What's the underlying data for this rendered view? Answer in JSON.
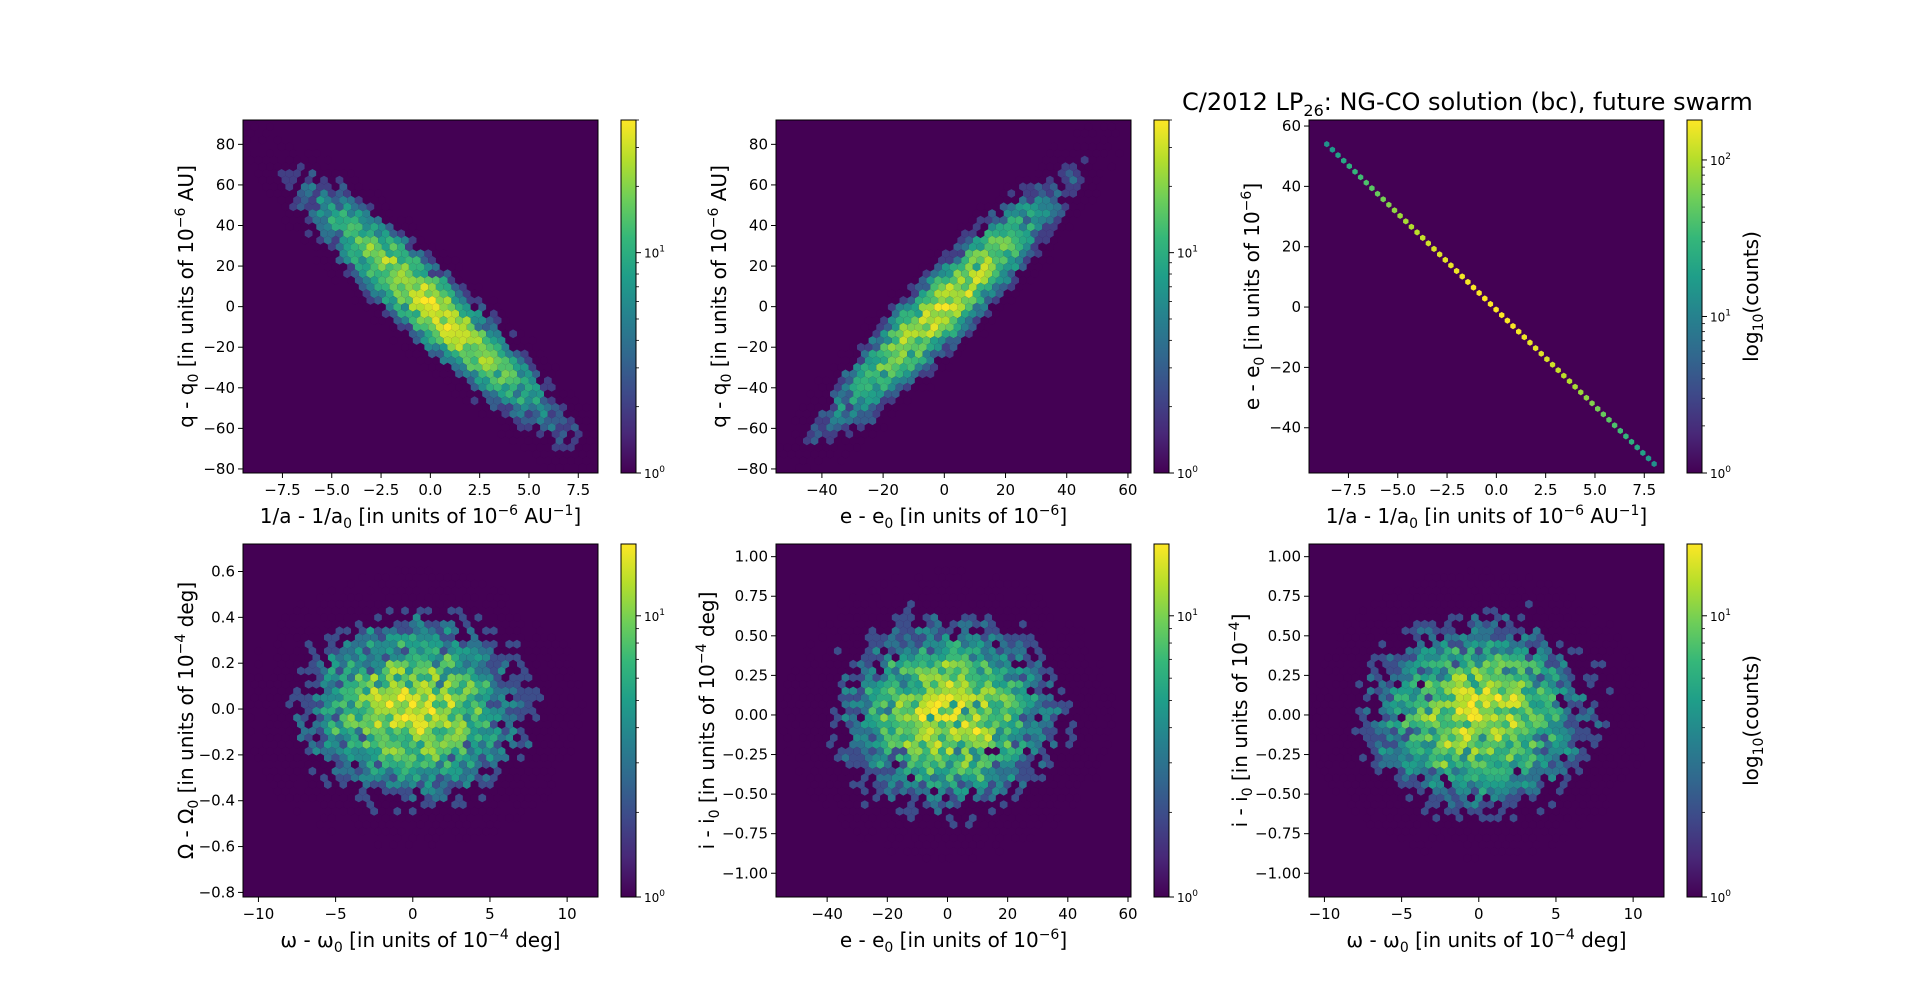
{
  "figure": {
    "title_prefix": "C/2012 LP",
    "title_sub": "26",
    "title_suffix": ": NG-CO solution (bc), future swarm"
  },
  "colors": {
    "background": "#440154",
    "viridis": [
      "#440154",
      "#482878",
      "#3e4989",
      "#31688e",
      "#26828e",
      "#1f9e89",
      "#35b779",
      "#6ece58",
      "#b5de2b",
      "#fde725"
    ]
  },
  "chart_data": [
    {
      "type": "heatmap",
      "subtype": "hexbin",
      "xlabel": {
        "pre": "1/a - 1/a",
        "sub": "0",
        "mid": " [in units of 10",
        "sup": "−6",
        "post": " AU",
        "sup2": "−1",
        "end": "]"
      },
      "ylabel": {
        "pre": "q - q",
        "sub": "0",
        "mid": " [in units of 10",
        "sup": "−6",
        "post": " AU]"
      },
      "xlim": [
        -9.5,
        8.5
      ],
      "ylim": [
        -82,
        92
      ],
      "xticks": [
        -7.5,
        -5.0,
        -2.5,
        0.0,
        2.5,
        5.0,
        7.5
      ],
      "xtick_labels": [
        "−7.5",
        "−5.0",
        "−2.5",
        "0.0",
        "2.5",
        "5.0",
        "7.5"
      ],
      "yticks": [
        -80,
        -60,
        -40,
        -20,
        0,
        20,
        40,
        60,
        80
      ],
      "ytick_labels": [
        "−80",
        "−60",
        "−40",
        "−20",
        "0",
        "20",
        "40",
        "60",
        "80"
      ],
      "distribution": {
        "center": [
          0,
          0
        ],
        "sigma": [
          3.0,
          28
        ],
        "correlation": -0.93
      },
      "colorbar": {
        "scale": "log",
        "range": [
          1,
          40
        ],
        "ticks": [
          1,
          10
        ],
        "tick_labels": [
          {
            "base": "10",
            "exp": "0"
          },
          {
            "base": "10",
            "exp": "1"
          }
        ],
        "label": ""
      }
    },
    {
      "type": "heatmap",
      "subtype": "hexbin",
      "xlabel": {
        "pre": "e - e",
        "sub": "0",
        "mid": " [in units of 10",
        "sup": "−6",
        "post": "]"
      },
      "ylabel": {
        "pre": "q - q",
        "sub": "0",
        "mid": " [in units of 10",
        "sup": "−6",
        "post": " AU]"
      },
      "xlim": [
        -55,
        61
      ],
      "ylim": [
        -82,
        92
      ],
      "xticks": [
        -40,
        -20,
        0,
        20,
        40,
        60
      ],
      "xtick_labels": [
        "−40",
        "−20",
        "0",
        "20",
        "40",
        "60"
      ],
      "yticks": [
        -80,
        -60,
        -40,
        -20,
        0,
        20,
        40,
        60,
        80
      ],
      "ytick_labels": [
        "−80",
        "−60",
        "−40",
        "−20",
        "0",
        "20",
        "40",
        "60",
        "80"
      ],
      "distribution": {
        "center": [
          0,
          0
        ],
        "sigma": [
          18,
          28
        ],
        "correlation": 0.93
      },
      "colorbar": {
        "scale": "log",
        "range": [
          1,
          40
        ],
        "ticks": [
          1,
          10
        ],
        "tick_labels": [
          {
            "base": "10",
            "exp": "0"
          },
          {
            "base": "10",
            "exp": "1"
          }
        ],
        "label": ""
      }
    },
    {
      "type": "heatmap",
      "subtype": "hexbin",
      "xlabel": {
        "pre": "1/a - 1/a",
        "sub": "0",
        "mid": " [in units of 10",
        "sup": "−6",
        "post": " AU",
        "sup2": "−1",
        "end": "]"
      },
      "ylabel": {
        "pre": "e - e",
        "sub": "0",
        "mid": " [in units of 10",
        "sup": "−6",
        "post": "]"
      },
      "xlim": [
        -9.5,
        8.5
      ],
      "ylim": [
        -55,
        62
      ],
      "xticks": [
        -7.5,
        -5.0,
        -2.5,
        0.0,
        2.5,
        5.0,
        7.5
      ],
      "xtick_labels": [
        "−7.5",
        "−5.0",
        "−2.5",
        "0.0",
        "2.5",
        "5.0",
        "7.5"
      ],
      "yticks": [
        -40,
        -20,
        0,
        20,
        40,
        60
      ],
      "ytick_labels": [
        "−40",
        "−20",
        "0",
        "20",
        "40",
        "60"
      ],
      "line": {
        "x0": -8.6,
        "y0": 54,
        "x1": 8.0,
        "y1": -52
      },
      "colorbar": {
        "scale": "log",
        "range": [
          1,
          180
        ],
        "ticks": [
          1,
          10,
          100
        ],
        "tick_labels": [
          {
            "base": "10",
            "exp": "0"
          },
          {
            "base": "10",
            "exp": "1"
          },
          {
            "base": "10",
            "exp": "2"
          }
        ],
        "label": {
          "pre": "log",
          "sub": "10",
          "post": "(counts)"
        }
      }
    },
    {
      "type": "heatmap",
      "subtype": "hexbin",
      "xlabel": {
        "pre": "ω - ω",
        "sub": "0",
        "mid": " [in units of 10",
        "sup": "−4",
        "post": " deg]"
      },
      "ylabel": {
        "pre": "Ω - Ω",
        "sub": "0",
        "mid": " [in units of 10",
        "sup": "−4",
        "post": " deg]"
      },
      "xlim": [
        -11,
        12
      ],
      "ylim": [
        -0.82,
        0.72
      ],
      "xticks": [
        -10,
        -5,
        0,
        5,
        10
      ],
      "xtick_labels": [
        "−10",
        "−5",
        "0",
        "5",
        "10"
      ],
      "yticks": [
        -0.8,
        -0.6,
        -0.4,
        -0.2,
        0.0,
        0.2,
        0.4,
        0.6
      ],
      "ytick_labels": [
        "−0.8",
        "−0.6",
        "−0.4",
        "−0.2",
        "0.0",
        "0.2",
        "0.4",
        "0.6"
      ],
      "distribution": {
        "center": [
          0,
          0
        ],
        "sigma": [
          3.6,
          0.2
        ],
        "correlation": 0.0
      },
      "colorbar": {
        "scale": "log",
        "range": [
          1,
          18
        ],
        "ticks": [
          1,
          10
        ],
        "tick_labels": [
          {
            "base": "10",
            "exp": "0"
          },
          {
            "base": "10",
            "exp": "1"
          }
        ],
        "label": ""
      }
    },
    {
      "type": "heatmap",
      "subtype": "hexbin",
      "xlabel": {
        "pre": "e - e",
        "sub": "0",
        "mid": " [in units of 10",
        "sup": "−6",
        "post": "]"
      },
      "ylabel": {
        "pre": "i - i",
        "sub": "0",
        "mid": " [in units of 10",
        "sup": "−4",
        "post": " deg]"
      },
      "xlim": [
        -57,
        61
      ],
      "ylim": [
        -1.15,
        1.08
      ],
      "xticks": [
        -40,
        -20,
        0,
        20,
        40,
        60
      ],
      "xtick_labels": [
        "−40",
        "−20",
        "0",
        "20",
        "40",
        "60"
      ],
      "yticks": [
        -1.0,
        -0.75,
        -0.5,
        -0.25,
        0.0,
        0.25,
        0.5,
        0.75,
        1.0
      ],
      "ytick_labels": [
        "−1.00",
        "−0.75",
        "−0.50",
        "−0.25",
        "0.00",
        "0.25",
        "0.50",
        "0.75",
        "1.00"
      ],
      "distribution": {
        "center": [
          0,
          0
        ],
        "sigma": [
          18,
          0.3
        ],
        "correlation": 0.0
      },
      "colorbar": {
        "scale": "log",
        "range": [
          1,
          18
        ],
        "ticks": [
          1,
          10
        ],
        "tick_labels": [
          {
            "base": "10",
            "exp": "0"
          },
          {
            "base": "10",
            "exp": "1"
          }
        ],
        "label": ""
      }
    },
    {
      "type": "heatmap",
      "subtype": "hexbin",
      "xlabel": {
        "pre": "ω - ω",
        "sub": "0",
        "mid": " [in units of 10",
        "sup": "−4",
        "post": " deg]"
      },
      "ylabel": {
        "pre": "i - i",
        "sub": "0",
        "mid": " [in units of 10",
        "sup": "−4",
        "post": "]"
      },
      "xlim": [
        -11,
        12
      ],
      "ylim": [
        -1.15,
        1.08
      ],
      "xticks": [
        -10,
        -5,
        0,
        5,
        10
      ],
      "xtick_labels": [
        "−10",
        "−5",
        "0",
        "5",
        "10"
      ],
      "yticks": [
        -1.0,
        -0.75,
        -0.5,
        -0.25,
        0.0,
        0.25,
        0.5,
        0.75,
        1.0
      ],
      "ytick_labels": [
        "−1.00",
        "−0.75",
        "−0.50",
        "−0.25",
        "0.00",
        "0.25",
        "0.50",
        "0.75",
        "1.00"
      ],
      "distribution": {
        "center": [
          0,
          0
        ],
        "sigma": [
          3.6,
          0.3
        ],
        "correlation": 0.0
      },
      "colorbar": {
        "scale": "log",
        "range": [
          1,
          18
        ],
        "ticks": [
          1,
          10
        ],
        "tick_labels": [
          {
            "base": "10",
            "exp": "0"
          },
          {
            "base": "10",
            "exp": "1"
          }
        ],
        "label": {
          "pre": "log",
          "sub": "10",
          "post": "(counts)"
        }
      }
    }
  ]
}
